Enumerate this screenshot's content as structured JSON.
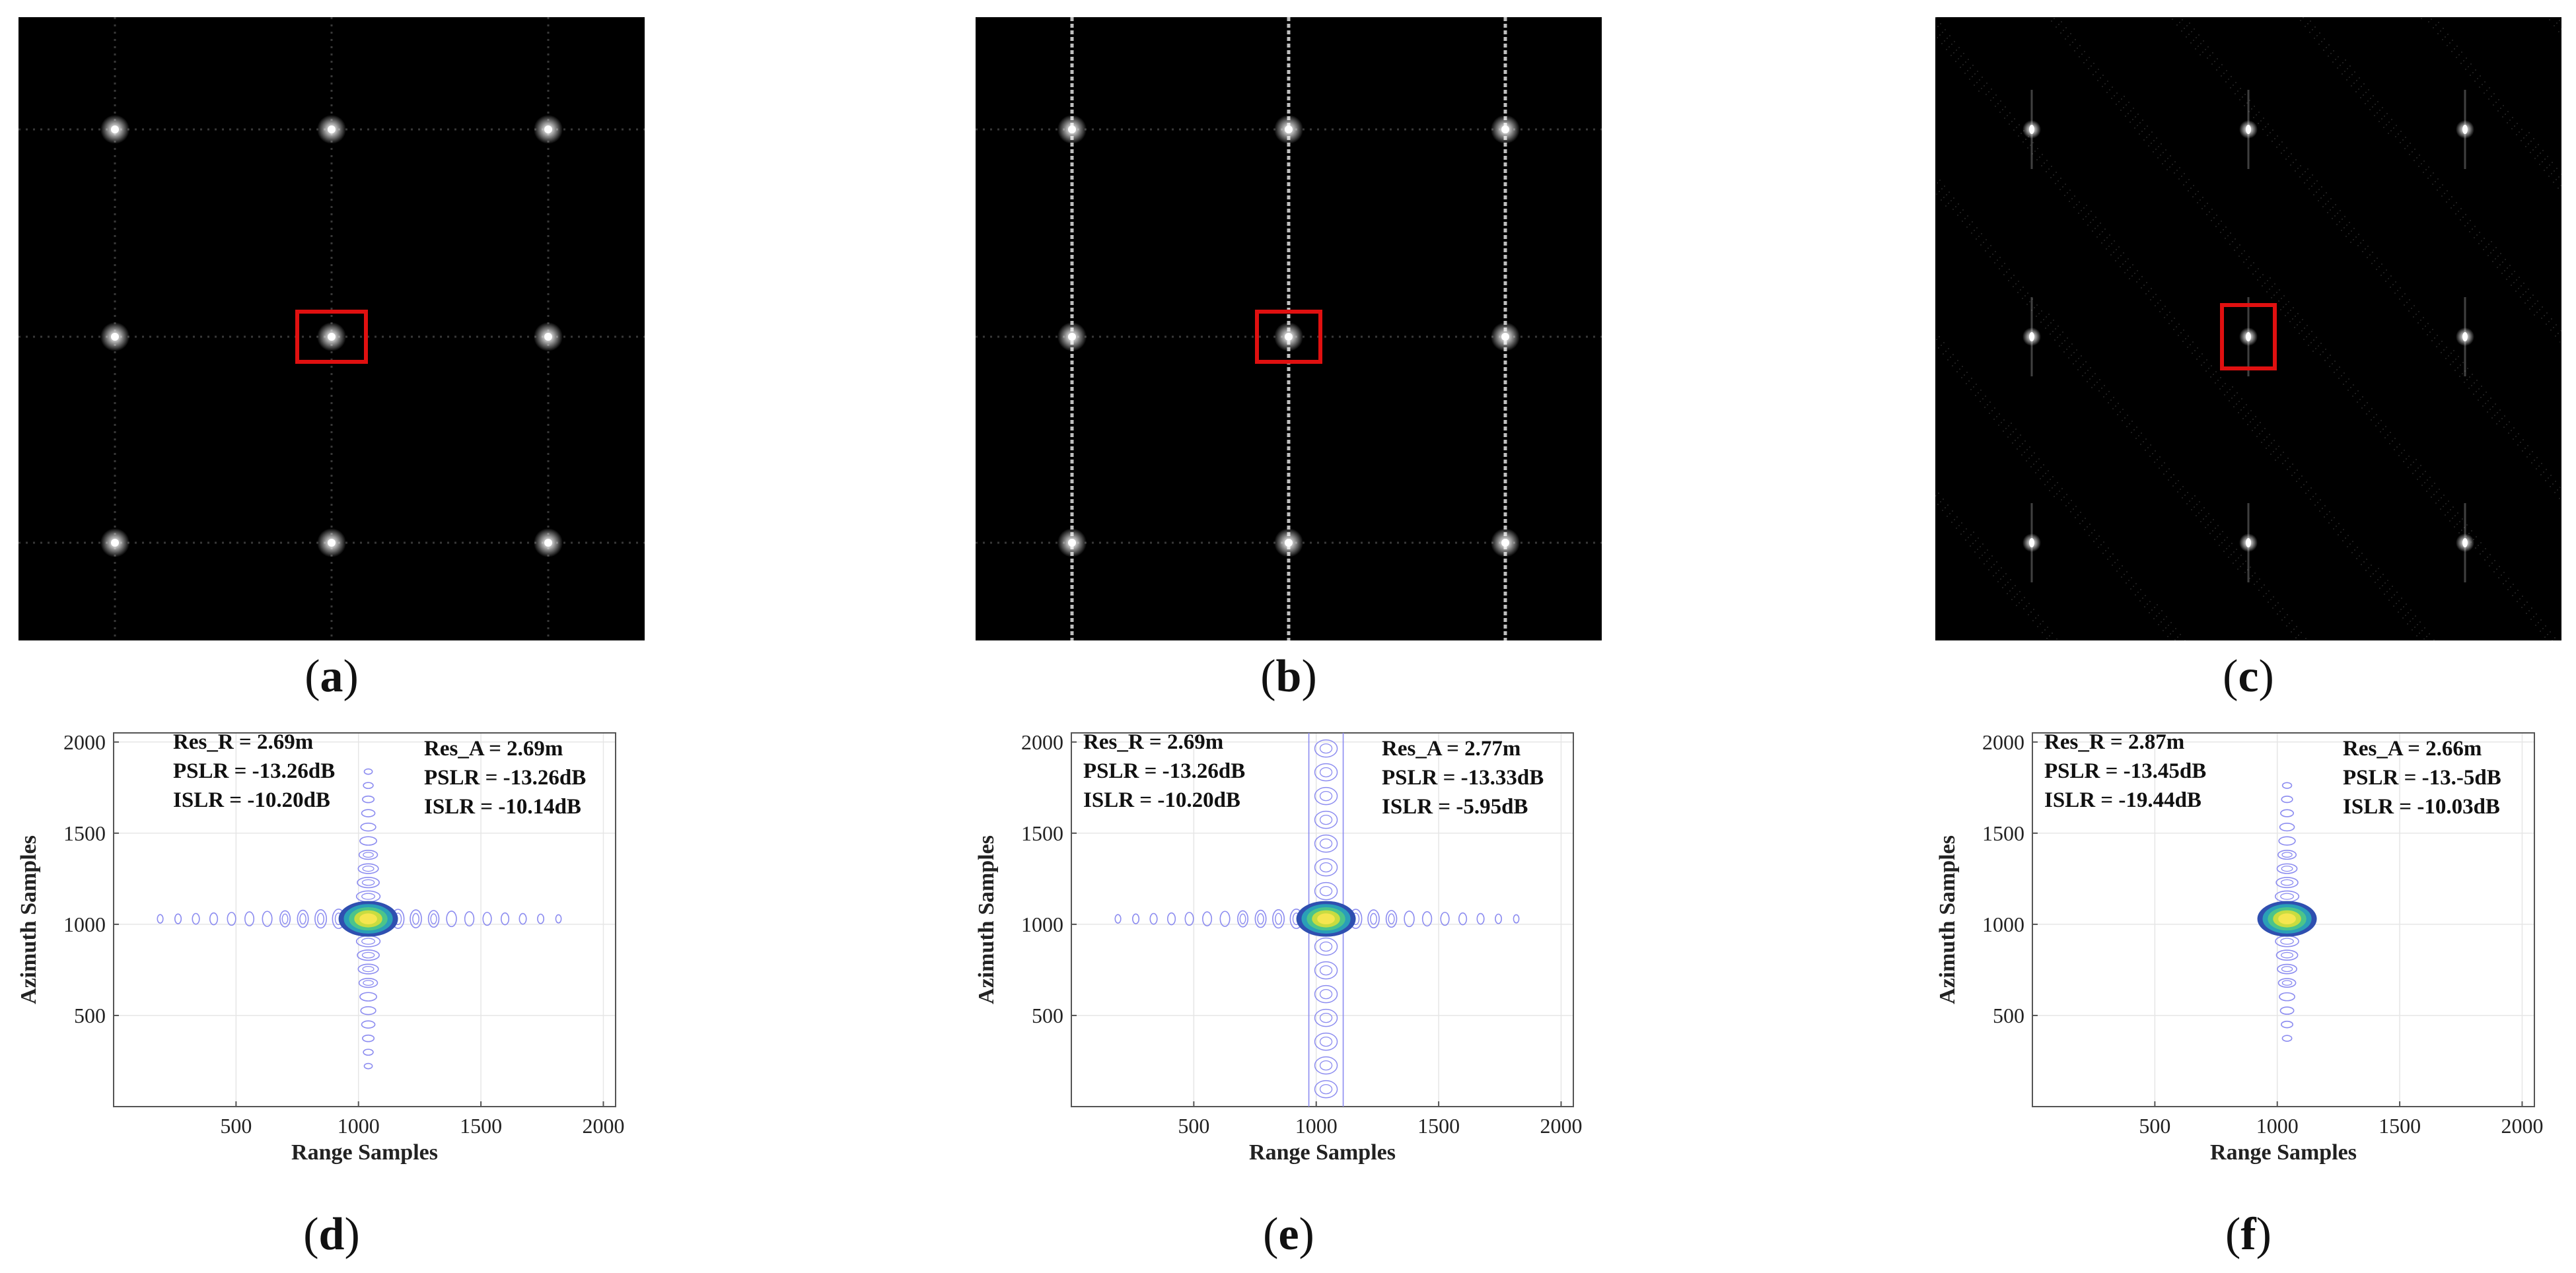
{
  "figure": {
    "panels_top": [
      {
        "id": "a",
        "caption_letter": "a",
        "variant": "a"
      },
      {
        "id": "b",
        "caption_letter": "b",
        "variant": "b"
      },
      {
        "id": "c",
        "caption_letter": "c",
        "variant": "c"
      }
    ],
    "panels_bottom": [
      {
        "id": "d",
        "caption_letter": "d"
      },
      {
        "id": "e",
        "caption_letter": "e"
      },
      {
        "id": "f",
        "caption_letter": "f"
      }
    ]
  },
  "chart_data": [
    {
      "type": "contour",
      "panel": "d",
      "xlabel": "Range Samples",
      "ylabel": "Azimuth Samples",
      "xlim": [
        0,
        2050
      ],
      "ylim": [
        0,
        2050
      ],
      "xticks": [
        500,
        1000,
        1500,
        2000
      ],
      "yticks": [
        500,
        1000,
        1500,
        2000
      ],
      "center": [
        1040,
        1030
      ],
      "range_lobe_extent": [
        150,
        1830
      ],
      "azimuth_lobe_extent": [
        220,
        1840
      ],
      "azimuth_sidelobes_continuous": false,
      "annotations_left": [
        "Res_R = 2.69m",
        "PSLR = -13.26dB",
        "ISLR = -10.20dB"
      ],
      "annotations_right": [
        "Res_A = 2.69m",
        "PSLR = -13.26dB",
        "ISLR = -10.14dB"
      ]
    },
    {
      "type": "contour",
      "panel": "e",
      "xlabel": "Range Samples",
      "ylabel": "Azimuth Samples",
      "xlim": [
        0,
        2050
      ],
      "ylim": [
        0,
        2050
      ],
      "xticks": [
        500,
        1000,
        1500,
        2000
      ],
      "yticks": [
        500,
        1000,
        1500,
        2000
      ],
      "center": [
        1040,
        1030
      ],
      "range_lobe_extent": [
        150,
        1830
      ],
      "azimuth_lobe_extent": [
        0,
        2050
      ],
      "azimuth_sidelobes_continuous": true,
      "annotations_left": [
        "Res_R = 2.69m",
        "PSLR = -13.26dB",
        "ISLR = -10.20dB"
      ],
      "annotations_right": [
        "Res_A = 2.77m",
        "PSLR = -13.33dB",
        "ISLR = -5.95dB"
      ]
    },
    {
      "type": "contour",
      "panel": "f",
      "xlabel": "Range Samples",
      "ylabel": "Azimuth Samples",
      "xlim": [
        0,
        2050
      ],
      "ylim": [
        0,
        2050
      ],
      "xticks": [
        500,
        1000,
        1500,
        2000
      ],
      "yticks": [
        500,
        1000,
        1500,
        2000
      ],
      "center": [
        1040,
        1030
      ],
      "range_lobe_extent": [
        960,
        1120
      ],
      "azimuth_lobe_extent": [
        320,
        1810
      ],
      "azimuth_sidelobes_continuous": false,
      "annotations_left": [
        "Res_R = 2.87m",
        "PSLR = -13.45dB",
        "ISLR = -19.44dB"
      ],
      "annotations_right": [
        "Res_A = 2.66m",
        "PSLR = -13.-5dB",
        "ISLR = -10.03dB"
      ]
    }
  ],
  "colors": {
    "contour_outer": "#8c8cf0",
    "contour_core": [
      "#2f4fb0",
      "#2a9fb8",
      "#4cc48a",
      "#c8dc40",
      "#f5e650"
    ],
    "highlight_box": "#e01010",
    "axis": "#555555"
  }
}
